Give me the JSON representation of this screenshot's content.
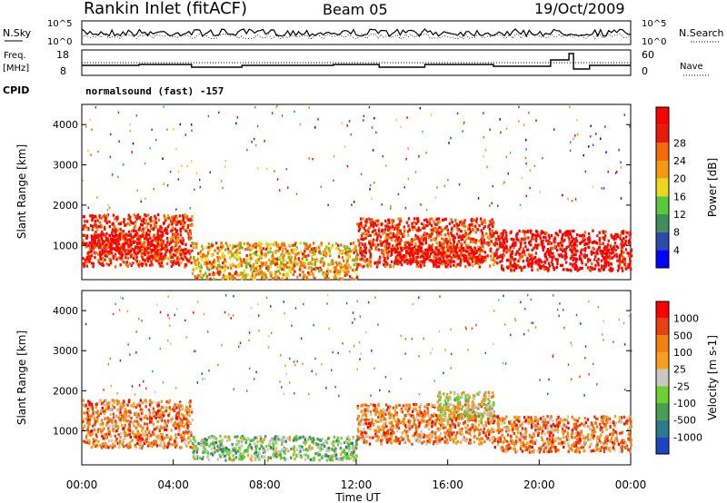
{
  "header": {
    "station": "Rankin Inlet (fitACF)",
    "beam": "Beam 05",
    "date": "19/Oct/2009"
  },
  "sky_panel": {
    "left_label": "N.Sky",
    "left_ticks": [
      "10^5",
      "10^0"
    ],
    "right_label": "N.Search",
    "right_ticks": [
      "10^5",
      "10^0"
    ]
  },
  "freq_panel": {
    "left_label_1": "Freq.",
    "left_label_2": "[MHz]",
    "left_ticks": [
      "18",
      "8"
    ],
    "right_label": "Nave",
    "right_ticks": [
      "60",
      "0"
    ]
  },
  "cpid": {
    "label": "CPID",
    "value": "normalsound (fast) -157"
  },
  "colors": {
    "power_scale": [
      "#0000ff",
      "#2c4aa8",
      "#3f8f5a",
      "#59c83a",
      "#e8d81e",
      "#f39b0f",
      "#f36b08",
      "#e81b08",
      "#ff0000"
    ],
    "velocity_scale": [
      "#2044c0",
      "#2a7a8c",
      "#46a050",
      "#6cd030",
      "#c8c8c0",
      "#f7a020",
      "#f08010",
      "#e84010",
      "#ff0000"
    ]
  },
  "chart_data": [
    {
      "type": "heatmap",
      "name": "power",
      "ylabel": "Slant Range [km]",
      "y_ticks": [
        "1000",
        "2000",
        "3000",
        "4000"
      ],
      "ylim": [
        150,
        4500
      ],
      "colorbar_label": "Power [dB]",
      "colorbar_ticks": [
        "4",
        "8",
        "12",
        "16",
        "20",
        "24",
        "28"
      ],
      "bands": [
        {
          "t0": 0.0,
          "t1": 4.8,
          "r0": 500,
          "r1": 1800,
          "level": 7
        },
        {
          "t0": 0.3,
          "t1": 3.5,
          "r0": 800,
          "r1": 1300,
          "level": 8
        },
        {
          "t0": 4.8,
          "t1": 12.0,
          "r0": 200,
          "r1": 1100,
          "level": 5
        },
        {
          "t0": 12.0,
          "t1": 18.0,
          "r0": 500,
          "r1": 1700,
          "level": 7
        },
        {
          "t0": 13.5,
          "t1": 17.5,
          "r0": 600,
          "r1": 1000,
          "level": 8
        },
        {
          "t0": 18.0,
          "t1": 24.0,
          "r0": 400,
          "r1": 1400,
          "level": 8
        }
      ]
    },
    {
      "type": "heatmap",
      "name": "velocity",
      "ylabel": "Slant Range [km]",
      "y_ticks": [
        "1000",
        "2000",
        "3000",
        "4000"
      ],
      "ylim": [
        150,
        4500
      ],
      "colorbar_label": "Velocity [m s-1]",
      "colorbar_ticks": [
        "1000",
        "500",
        "100",
        "25",
        "-25",
        "-100",
        "-500",
        "-1000"
      ],
      "bands": [
        {
          "t0": 0.0,
          "t1": 4.8,
          "r0": 600,
          "r1": 1800,
          "level": 6
        },
        {
          "t0": 4.8,
          "t1": 12.0,
          "r0": 300,
          "r1": 900,
          "level": 3
        },
        {
          "t0": 12.0,
          "t1": 18.0,
          "r0": 700,
          "r1": 1700,
          "level": 6
        },
        {
          "t0": 15.5,
          "t1": 18.0,
          "r0": 1300,
          "r1": 2000,
          "level": 4
        },
        {
          "t0": 18.0,
          "t1": 24.0,
          "r0": 500,
          "r1": 1400,
          "level": 6
        }
      ]
    }
  ],
  "x_axis": {
    "label": "Time UT",
    "ticks": [
      "00:00",
      "04:00",
      "08:00",
      "12:00",
      "16:00",
      "20:00",
      "00:00"
    ]
  }
}
